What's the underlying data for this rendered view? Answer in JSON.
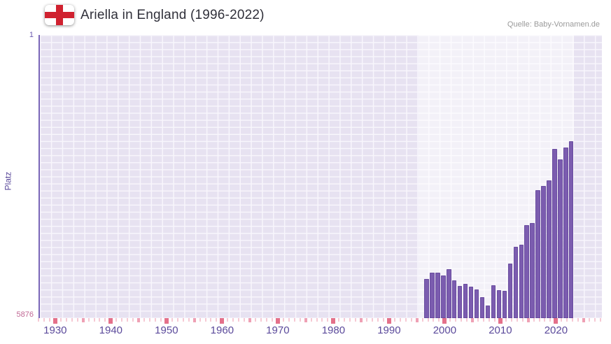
{
  "header": {
    "title": "Ariella in England (1996-2022)",
    "source": "Quelle: Baby-Vornamen.de",
    "flag_icon": "england-flag"
  },
  "colors": {
    "bar": "#7b5caf",
    "bar_outline": "#6a4da0",
    "axis_line": "#7a66b8",
    "y_tick_top": "#6b5ab0",
    "y_tick_bottom": "#c16794",
    "x_label": "#5b4a9b",
    "plot_background": "#e7e2f1",
    "gridline": "#f8f6fc",
    "highlight_band": "rgba(255,255,255,0.5)",
    "minor_tick": "#f6c9d4",
    "mid_tick": "#efa0b4",
    "major_tick": "#e4708a",
    "flag_red": "#d0212f",
    "title_text": "#30303a",
    "source_text": "#9a9a9a"
  },
  "chart_data": {
    "type": "bar",
    "title": "Ariella in England (1996-2022)",
    "ylabel": "Platz",
    "xlabel": "",
    "y_axis_inverted": true,
    "y_top": 1,
    "y_bottom": 5876,
    "y_top_label": "1",
    "y_bottom_label": "5876",
    "x_range": [
      1927,
      2028
    ],
    "x_ticks": [
      1930,
      1940,
      1950,
      1960,
      1970,
      1980,
      1990,
      2000,
      2010,
      2020
    ],
    "highlight_range": [
      1995,
      2023
    ],
    "grid": true,
    "legend": "none",
    "x": [
      1996,
      1997,
      1998,
      1999,
      2000,
      2001,
      2002,
      2003,
      2004,
      2005,
      2006,
      2007,
      2008,
      2009,
      2010,
      2011,
      2012,
      2013,
      2014,
      2015,
      2016,
      2017,
      2018,
      2019,
      2020,
      2021,
      2022
    ],
    "values": [
      5060,
      4930,
      4940,
      4990,
      4860,
      5090,
      5210,
      5160,
      5220,
      5280,
      5440,
      5610,
      5190,
      5300,
      5310,
      4750,
      4390,
      4350,
      3940,
      3900,
      3220,
      3140,
      3020,
      2370,
      2580,
      2340,
      2210
    ]
  }
}
